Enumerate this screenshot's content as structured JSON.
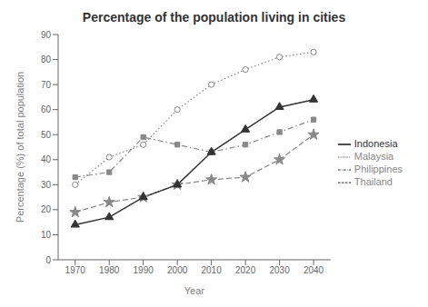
{
  "chart_data": {
    "type": "line",
    "title": "Percentage of the population living in cities",
    "xlabel": "Year",
    "ylabel": "Percentage (%) of total population",
    "x": [
      1970,
      1980,
      1990,
      2000,
      2010,
      2020,
      2030,
      2040
    ],
    "series": [
      {
        "name": "Philippines",
        "color": "#888888",
        "line_style": "dashdot",
        "marker": "square",
        "values": [
          33,
          35,
          49,
          46,
          43,
          46,
          51,
          56
        ]
      },
      {
        "name": "Malaysia",
        "color": "#888888",
        "line_style": "dotted",
        "marker": "open_circle",
        "values": [
          30,
          41,
          46,
          60,
          70,
          76,
          81,
          83
        ]
      },
      {
        "name": "Thailand",
        "color": "#888888",
        "line_style": "dashed",
        "marker": "star",
        "values": [
          19,
          23,
          25,
          30,
          32,
          33,
          40,
          50
        ]
      },
      {
        "name": "Indonesia",
        "color": "#333333",
        "line_style": "solid",
        "marker": "triangle",
        "values": [
          14,
          17,
          25,
          30,
          43,
          52,
          61,
          64
        ]
      }
    ],
    "xlim": [
      1965,
      2045
    ],
    "xticks": [
      1970,
      1980,
      1990,
      2000,
      2010,
      2020,
      2030,
      2040
    ],
    "ylim": [
      0,
      90
    ],
    "yticks": [
      0,
      10,
      20,
      30,
      40,
      50,
      60,
      70,
      80,
      90
    ],
    "grid": false,
    "legend": "right"
  }
}
